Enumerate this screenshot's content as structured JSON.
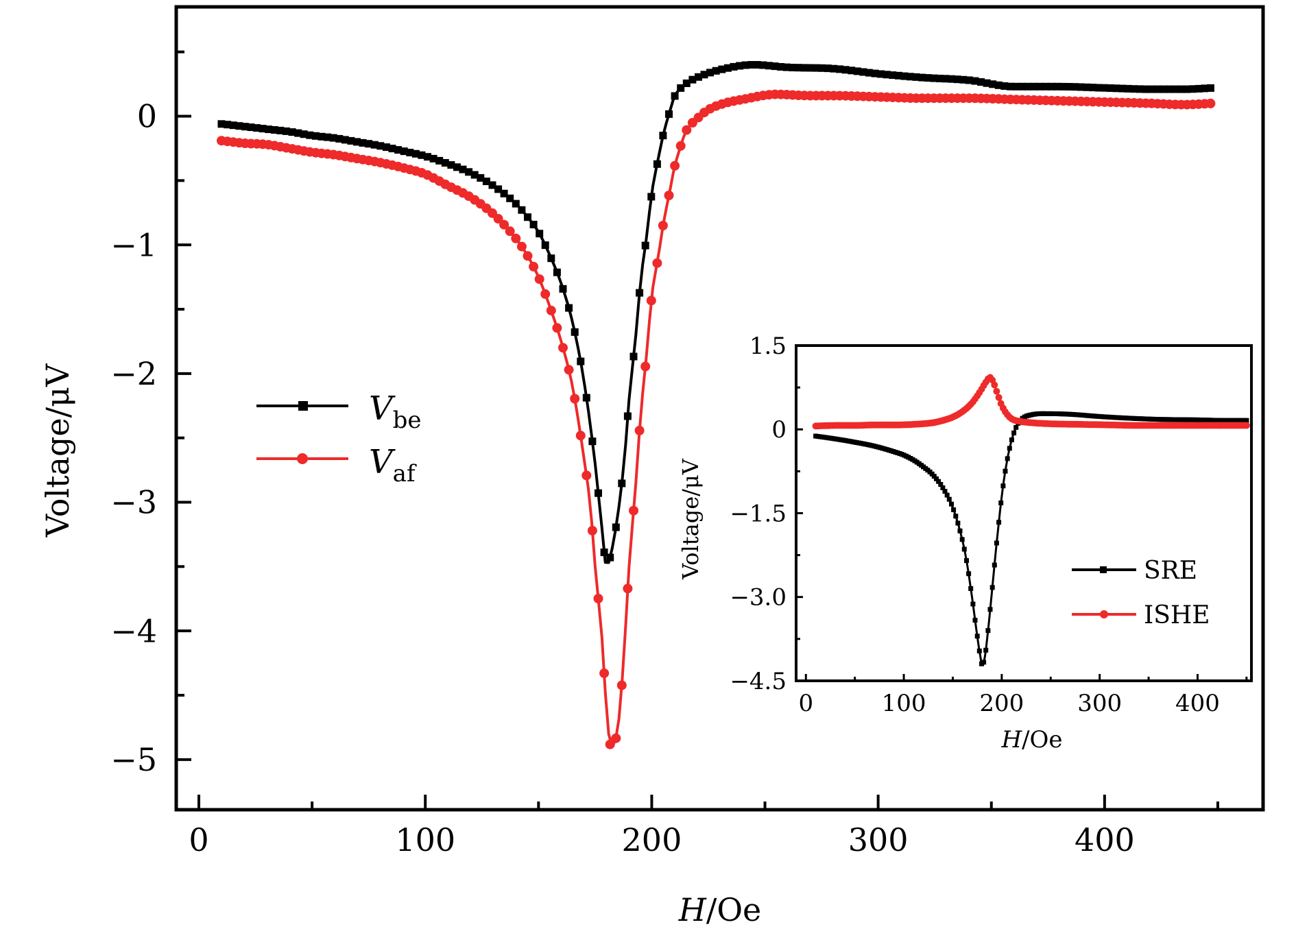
{
  "chart_data": [
    {
      "type": "line",
      "title": "",
      "xlabel": "H/Oe",
      "xlabel_italic_part": "H",
      "xlabel_rest": "/Oe",
      "ylabel": "Voltage/μV",
      "xlim": [
        -10,
        470
      ],
      "ylim": [
        -5.39,
        0.85
      ],
      "xticks": [
        0,
        100,
        200,
        300,
        400
      ],
      "xtick_labels": [
        "0",
        "100",
        "200",
        "300",
        "400"
      ],
      "xminor": [
        50,
        150,
        250,
        350,
        450
      ],
      "yticks": [
        0,
        -1,
        -2,
        -3,
        -4,
        -5
      ],
      "ytick_labels": [
        "0",
        "−1",
        "−2",
        "−3",
        "−4",
        "−5"
      ],
      "yminor": [
        0.5,
        -0.5,
        -1.5,
        -2.5,
        -3.5,
        -4.5
      ],
      "grid": false,
      "legend": {
        "placement": "center-left",
        "entries": [
          {
            "main": "V",
            "sub": "be",
            "color": "#000000",
            "marker": "square"
          },
          {
            "main": "V",
            "sub": "af",
            "color": "#ee2a2a",
            "marker": "circle"
          }
        ]
      },
      "series": [
        {
          "name": "V_be",
          "color": "#000000",
          "marker": "square",
          "points": [
            [
              10,
              -0.06
            ],
            [
              20,
              -0.08
            ],
            [
              30,
              -0.1
            ],
            [
              40,
              -0.12
            ],
            [
              50,
              -0.15
            ],
            [
              60,
              -0.17
            ],
            [
              70,
              -0.2
            ],
            [
              80,
              -0.23
            ],
            [
              90,
              -0.27
            ],
            [
              100,
              -0.31
            ],
            [
              110,
              -0.37
            ],
            [
              120,
              -0.44
            ],
            [
              130,
              -0.54
            ],
            [
              140,
              -0.68
            ],
            [
              145,
              -0.78
            ],
            [
              150,
              -0.9
            ],
            [
              155,
              -1.08
            ],
            [
              160,
              -1.3
            ],
            [
              165,
              -1.6
            ],
            [
              170,
              -2.05
            ],
            [
              175,
              -2.7
            ],
            [
              178,
              -3.2
            ],
            [
              180,
              -3.5
            ],
            [
              182,
              -3.4
            ],
            [
              185,
              -3.1
            ],
            [
              188,
              -2.65
            ],
            [
              190,
              -2.2
            ],
            [
              193,
              -1.7
            ],
            [
              195,
              -1.3
            ],
            [
              198,
              -0.9
            ],
            [
              200,
              -0.6
            ],
            [
              203,
              -0.32
            ],
            [
              205,
              -0.15
            ],
            [
              208,
              0.04
            ],
            [
              210,
              0.15
            ],
            [
              215,
              0.25
            ],
            [
              220,
              0.3
            ],
            [
              230,
              0.36
            ],
            [
              245,
              0.4
            ],
            [
              260,
              0.38
            ],
            [
              280,
              0.37
            ],
            [
              300,
              0.33
            ],
            [
              320,
              0.3
            ],
            [
              340,
              0.28
            ],
            [
              360,
              0.23
            ],
            [
              380,
              0.23
            ],
            [
              400,
              0.22
            ],
            [
              420,
              0.21
            ],
            [
              435,
              0.21
            ],
            [
              448,
              0.22
            ]
          ]
        },
        {
          "name": "V_af",
          "color": "#ee2a2a",
          "marker": "circle",
          "points": [
            [
              10,
              -0.19
            ],
            [
              20,
              -0.21
            ],
            [
              30,
              -0.22
            ],
            [
              40,
              -0.25
            ],
            [
              50,
              -0.28
            ],
            [
              60,
              -0.3
            ],
            [
              70,
              -0.33
            ],
            [
              80,
              -0.36
            ],
            [
              90,
              -0.4
            ],
            [
              100,
              -0.45
            ],
            [
              110,
              -0.54
            ],
            [
              120,
              -0.63
            ],
            [
              130,
              -0.76
            ],
            [
              140,
              -0.95
            ],
            [
              145,
              -1.08
            ],
            [
              150,
              -1.25
            ],
            [
              155,
              -1.48
            ],
            [
              160,
              -1.75
            ],
            [
              165,
              -2.1
            ],
            [
              170,
              -2.65
            ],
            [
              173,
              -3.05
            ],
            [
              175,
              -3.5
            ],
            [
              178,
              -4.05
            ],
            [
              180,
              -4.6
            ],
            [
              182,
              -4.9
            ],
            [
              184,
              -4.85
            ],
            [
              186,
              -4.6
            ],
            [
              188,
              -4.1
            ],
            [
              190,
              -3.5
            ],
            [
              193,
              -2.85
            ],
            [
              195,
              -2.35
            ],
            [
              198,
              -1.8
            ],
            [
              200,
              -1.4
            ],
            [
              203,
              -1.08
            ],
            [
              205,
              -0.85
            ],
            [
              208,
              -0.58
            ],
            [
              210,
              -0.4
            ],
            [
              213,
              -0.22
            ],
            [
              215,
              -0.12
            ],
            [
              220,
              -0.02
            ],
            [
              225,
              0.05
            ],
            [
              232,
              0.1
            ],
            [
              240,
              0.13
            ],
            [
              255,
              0.17
            ],
            [
              270,
              0.16
            ],
            [
              280,
              0.16
            ],
            [
              300,
              0.15
            ],
            [
              320,
              0.14
            ],
            [
              340,
              0.14
            ],
            [
              360,
              0.13
            ],
            [
              380,
              0.12
            ],
            [
              400,
              0.11
            ],
            [
              420,
              0.1
            ],
            [
              435,
              0.09
            ],
            [
              448,
              0.1
            ]
          ]
        }
      ]
    },
    {
      "type": "line",
      "title": "",
      "role": "inset",
      "xlabel": "H/Oe",
      "xlabel_italic_part": "H",
      "xlabel_rest": "/Oe",
      "ylabel": "Voltage/μV",
      "xlim": [
        -10,
        455
      ],
      "ylim": [
        -4.5,
        1.5
      ],
      "xticks": [
        0,
        100,
        200,
        300,
        400
      ],
      "xtick_labels": [
        "0",
        "100",
        "200",
        "300",
        "400"
      ],
      "xminor": [
        50,
        150,
        250,
        350,
        450
      ],
      "yticks": [
        1.5,
        0,
        -1.5,
        -3.0,
        -4.5
      ],
      "ytick_labels": [
        "1.5",
        "0",
        "−1.5",
        "−3.0",
        "−4.5"
      ],
      "yminor": [
        0.75,
        -0.75,
        -2.25,
        -3.75
      ],
      "grid": false,
      "legend": {
        "placement": "bottom-right",
        "entries": [
          {
            "label": "SRE",
            "color": "#000000",
            "marker": "square"
          },
          {
            "label": "ISHE",
            "color": "#ee2a2a",
            "marker": "circle"
          }
        ]
      },
      "series": [
        {
          "name": "SRE",
          "color": "#000000",
          "marker": "square",
          "points": [
            [
              10,
              -0.12
            ],
            [
              30,
              -0.17
            ],
            [
              50,
              -0.23
            ],
            [
              70,
              -0.3
            ],
            [
              90,
              -0.4
            ],
            [
              100,
              -0.46
            ],
            [
              110,
              -0.55
            ],
            [
              120,
              -0.67
            ],
            [
              130,
              -0.82
            ],
            [
              140,
              -1.05
            ],
            [
              150,
              -1.4
            ],
            [
              160,
              -2.0
            ],
            [
              165,
              -2.45
            ],
            [
              170,
              -3.05
            ],
            [
              175,
              -3.7
            ],
            [
              178,
              -4.05
            ],
            [
              180,
              -4.22
            ],
            [
              183,
              -4.05
            ],
            [
              186,
              -3.6
            ],
            [
              190,
              -2.9
            ],
            [
              195,
              -2.0
            ],
            [
              200,
              -1.2
            ],
            [
              205,
              -0.6
            ],
            [
              210,
              -0.2
            ],
            [
              215,
              0.05
            ],
            [
              220,
              0.18
            ],
            [
              230,
              0.26
            ],
            [
              250,
              0.28
            ],
            [
              270,
              0.27
            ],
            [
              300,
              0.23
            ],
            [
              330,
              0.2
            ],
            [
              360,
              0.18
            ],
            [
              400,
              0.17
            ],
            [
              430,
              0.16
            ],
            [
              450,
              0.16
            ]
          ]
        },
        {
          "name": "ISHE",
          "color": "#ee2a2a",
          "marker": "circle",
          "points": [
            [
              10,
              0.06
            ],
            [
              30,
              0.07
            ],
            [
              50,
              0.07
            ],
            [
              70,
              0.08
            ],
            [
              90,
              0.08
            ],
            [
              110,
              0.09
            ],
            [
              130,
              0.12
            ],
            [
              140,
              0.16
            ],
            [
              150,
              0.22
            ],
            [
              160,
              0.32
            ],
            [
              170,
              0.48
            ],
            [
              178,
              0.68
            ],
            [
              184,
              0.85
            ],
            [
              188,
              0.93
            ],
            [
              192,
              0.82
            ],
            [
              196,
              0.62
            ],
            [
              200,
              0.43
            ],
            [
              205,
              0.28
            ],
            [
              210,
              0.19
            ],
            [
              220,
              0.14
            ],
            [
              230,
              0.12
            ],
            [
              250,
              0.1
            ],
            [
              280,
              0.09
            ],
            [
              310,
              0.08
            ],
            [
              340,
              0.07
            ],
            [
              370,
              0.07
            ],
            [
              400,
              0.07
            ],
            [
              430,
              0.07
            ],
            [
              450,
              0.07
            ]
          ]
        }
      ]
    }
  ]
}
